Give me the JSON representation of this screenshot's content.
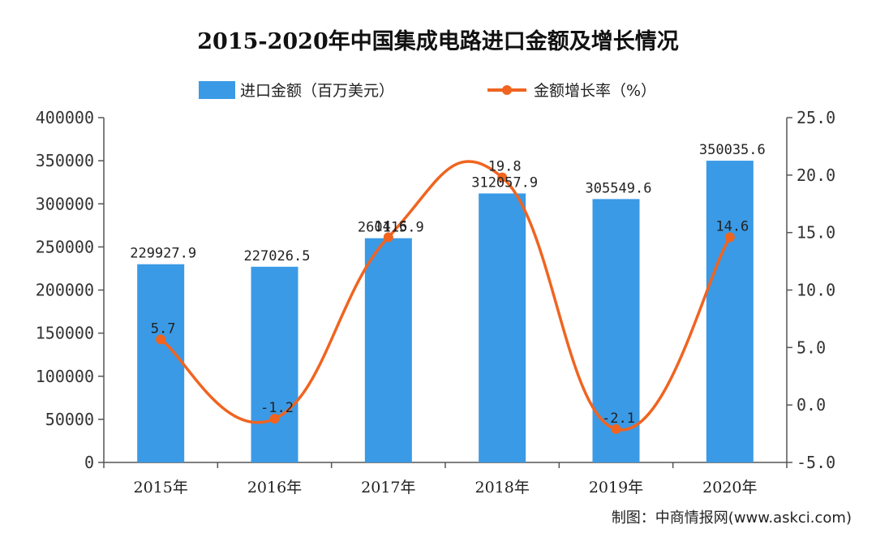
{
  "chart_data": {
    "type": "bar",
    "title": "2015-2020年中国集成电路进口金额及增长情况",
    "categories": [
      "2015年",
      "2016年",
      "2017年",
      "2018年",
      "2019年",
      "2020年"
    ],
    "series": [
      {
        "name": "进口金额（百万美元）",
        "type": "bar",
        "axis": "left",
        "color": "#3a9ae6",
        "values": [
          229927.9,
          227026.5,
          260115.9,
          312057.9,
          305549.6,
          350035.6
        ],
        "labels": [
          "229927.9",
          "227026.5",
          "260115.9",
          "312057.9",
          "305549.6",
          "350035.6"
        ]
      },
      {
        "name": "金额增长率（%）",
        "type": "line",
        "axis": "right",
        "color": "#f06420",
        "smooth": true,
        "values": [
          5.7,
          -1.2,
          14.6,
          19.8,
          -2.1,
          14.6
        ],
        "labels": [
          "5.7",
          "-1.2",
          "14.6",
          "19.8",
          "-2.1",
          "14.6"
        ]
      }
    ],
    "left_axis": {
      "ylim": [
        0,
        400000
      ],
      "ticks": [
        0,
        50000,
        100000,
        150000,
        200000,
        250000,
        300000,
        350000,
        400000
      ],
      "tick_labels": [
        "0",
        "50000",
        "100000",
        "150000",
        "200000",
        "250000",
        "300000",
        "350000",
        "400000"
      ]
    },
    "right_axis": {
      "ylim": [
        -5,
        25
      ],
      "ticks": [
        -5,
        0,
        5,
        10,
        15,
        20,
        25
      ],
      "tick_labels": [
        "-5.0",
        "0.0",
        "5.0",
        "10.0",
        "15.0",
        "20.0",
        "25.0"
      ]
    },
    "legend_position": "top-center",
    "grid": false,
    "source": "制图：中商情报网(www.askci.com)"
  }
}
